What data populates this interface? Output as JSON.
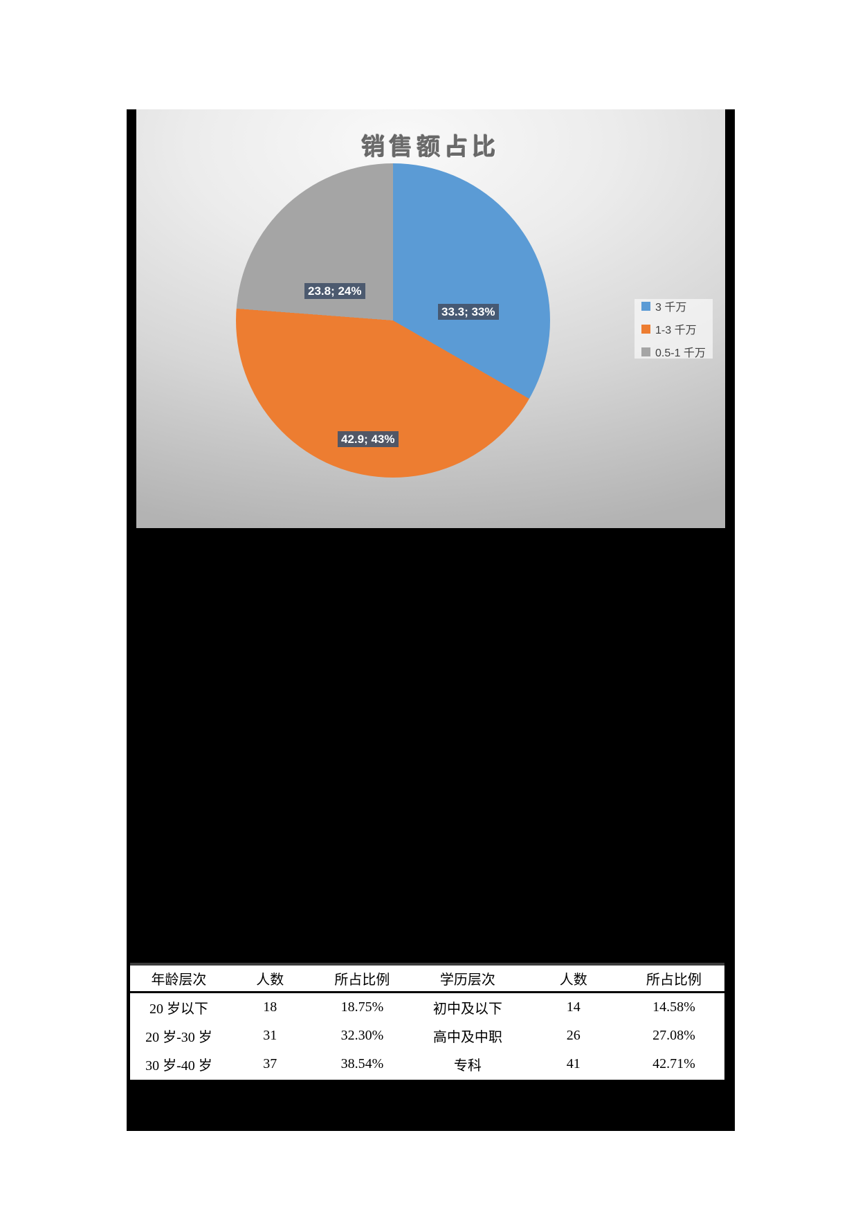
{
  "colors": {
    "blue": "#5B9BD5",
    "orange": "#ED7D31",
    "gray": "#A5A5A5",
    "label_bg": "#44546A",
    "page_black": "#000000"
  },
  "chart_data": {
    "type": "pie",
    "title": "销售额占比",
    "labels": [
      "3 千万",
      "1-3 千万",
      "0.5-1 千万"
    ],
    "values": [
      33.3,
      42.9,
      23.8
    ],
    "percents": [
      33,
      43,
      24
    ],
    "data_labels": [
      "33.3; 33%",
      "42.9; 43%",
      "23.8; 24%"
    ],
    "colors": [
      "#5B9BD5",
      "#ED7D31",
      "#A5A5A5"
    ],
    "start_angle_deg": 0,
    "direction": "clockwise",
    "legend_position": "right"
  },
  "table": {
    "headers": [
      "年龄层次",
      "人数",
      "所占比例",
      "学历层次",
      "人数",
      "所占比例"
    ],
    "rows": [
      [
        "20 岁以下",
        "18",
        "18.75%",
        "初中及以下",
        "14",
        "14.58%"
      ],
      [
        "20 岁-30 岁",
        "31",
        "32.30%",
        "高中及中职",
        "26",
        "27.08%"
      ],
      [
        "30 岁-40 岁",
        "37",
        "38.54%",
        "专科",
        "41",
        "42.71%"
      ]
    ]
  }
}
